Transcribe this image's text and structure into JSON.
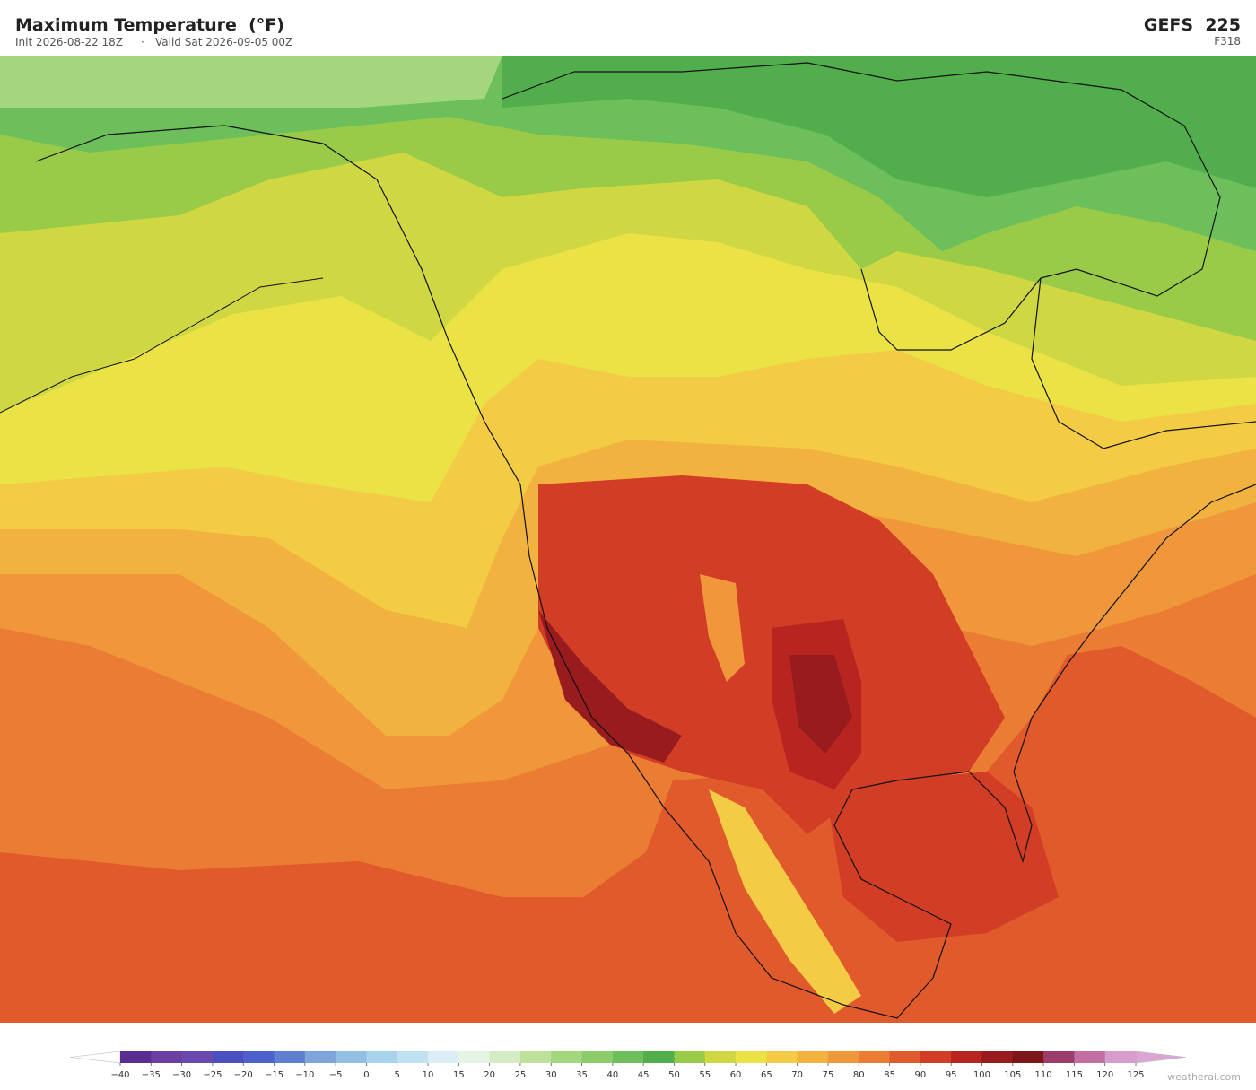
{
  "header": {
    "title": "Maximum Temperature  (°F)",
    "init": "Init 2026-08-22 18Z",
    "separator": "·",
    "valid": "Valid Sat 2026-09-05 00Z",
    "model": "GEFS  225",
    "forecast_hour": "F318"
  },
  "colorbar": {
    "ticks": [
      {
        "value": -40,
        "label": "−40"
      },
      {
        "value": -35,
        "label": "−35"
      },
      {
        "value": -30,
        "label": "−30"
      },
      {
        "value": -25,
        "label": "−25"
      },
      {
        "value": -20,
        "label": "−20"
      },
      {
        "value": -15,
        "label": "−15"
      },
      {
        "value": -10,
        "label": "−10"
      },
      {
        "value": -5,
        "label": "−5"
      },
      0,
      5,
      10,
      15,
      20,
      25,
      30,
      35,
      40,
      45,
      50,
      55,
      60,
      65,
      70,
      75,
      80,
      85,
      90,
      95,
      100,
      105,
      110,
      115,
      120,
      125
    ],
    "colors": [
      "#5a2d91",
      "#6a3fa0",
      "#6b4ab0",
      "#4b4fc0",
      "#4f5fcc",
      "#5f80d0",
      "#7fa5da",
      "#93bfe3",
      "#a9d2ec",
      "#c1e1f0",
      "#dbeef5",
      "#e6f4e6",
      "#d3ecc4",
      "#bde09a",
      "#a3d67f",
      "#8ccc6a",
      "#6cbf5a",
      "#52ad4c",
      "#9acb48",
      "#cfd843",
      "#ebe246",
      "#f3cb45",
      "#f2b23f",
      "#ef973a",
      "#ea7c33",
      "#e05a2b",
      "#d23d26",
      "#b82521",
      "#981b1e",
      "#7e1518",
      "#9a3d6a",
      "#c06fa0",
      "#d69ccc"
    ],
    "under_color": "#ffffff",
    "over_color": "#dba6d5"
  },
  "credit": "weatherai.com"
}
